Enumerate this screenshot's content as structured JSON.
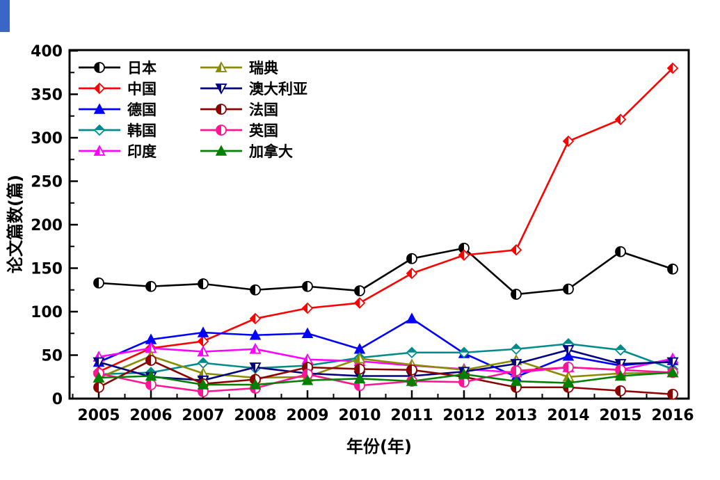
{
  "page": {
    "background": "#ffffff",
    "decoration_blue_strip_color": "#3a66c8"
  },
  "chart_data": {
    "type": "line",
    "title": "",
    "xlabel": "年份(年)",
    "ylabel": "论文篇数(篇)",
    "x": [
      2005,
      2006,
      2007,
      2008,
      2009,
      2010,
      2011,
      2012,
      2013,
      2014,
      2015,
      2016
    ],
    "ylim": [
      0,
      400
    ],
    "y_major_step": 50,
    "y_minor_step": 25,
    "grid": false,
    "legend_position": "top-left inside plot, two columns",
    "axis_color": "#000000",
    "series": [
      {
        "name": "日本",
        "color": "#000000",
        "marker": "circle-half",
        "values": [
          133,
          129,
          132,
          125,
          129,
          124,
          161,
          173,
          120,
          126,
          169,
          149
        ]
      },
      {
        "name": "中国",
        "color": "#ff0000",
        "marker": "diamond-half-right",
        "values": [
          31,
          58,
          66,
          92,
          104,
          110,
          144,
          165,
          171,
          296,
          321,
          380
        ]
      },
      {
        "name": "德国",
        "color": "#0000ff",
        "marker": "tri-up",
        "values": [
          42,
          68,
          76,
          73,
          75,
          57,
          92,
          52,
          25,
          49,
          38,
          44
        ]
      },
      {
        "name": "韩国",
        "color": "#008b8b",
        "marker": "diamond-half-bottom",
        "values": [
          28,
          30,
          41,
          35,
          38,
          47,
          53,
          53,
          57,
          63,
          56,
          34
        ]
      },
      {
        "name": "印度",
        "color": "#ff00ff",
        "marker": "tri-up-half",
        "values": [
          48,
          58,
          54,
          57,
          45,
          43,
          38,
          34,
          30,
          36,
          33,
          46
        ]
      },
      {
        "name": "瑞典",
        "color": "#8b8b00",
        "marker": "tri-up-half",
        "values": [
          24,
          49,
          29,
          24,
          25,
          46,
          39,
          33,
          44,
          25,
          29,
          30
        ]
      },
      {
        "name": "澳大利亚",
        "color": "#000080",
        "marker": "tri-down-half",
        "values": [
          42,
          25,
          21,
          36,
          29,
          26,
          26,
          31,
          40,
          56,
          40,
          42
        ]
      },
      {
        "name": "法国",
        "color": "#8b0000",
        "marker": "circle-half",
        "values": [
          13,
          44,
          17,
          22,
          36,
          34,
          33,
          25,
          13,
          13,
          9,
          5
        ]
      },
      {
        "name": "英国",
        "color": "#ff1493",
        "marker": "circle-half",
        "values": [
          29,
          16,
          8,
          12,
          28,
          15,
          20,
          19,
          32,
          36,
          33,
          30
        ]
      },
      {
        "name": "加拿大",
        "color": "#008000",
        "marker": "tri-up",
        "values": [
          24,
          26,
          16,
          16,
          21,
          23,
          20,
          28,
          20,
          18,
          26,
          30
        ]
      }
    ],
    "legend_columns": [
      [
        "日本",
        "中国",
        "德国",
        "韩国",
        "印度"
      ],
      [
        "瑞典",
        "澳大利亚",
        "法国",
        "英国",
        "加拿大"
      ]
    ],
    "y_ticks": [
      0,
      50,
      100,
      150,
      200,
      250,
      300,
      350,
      400
    ]
  }
}
